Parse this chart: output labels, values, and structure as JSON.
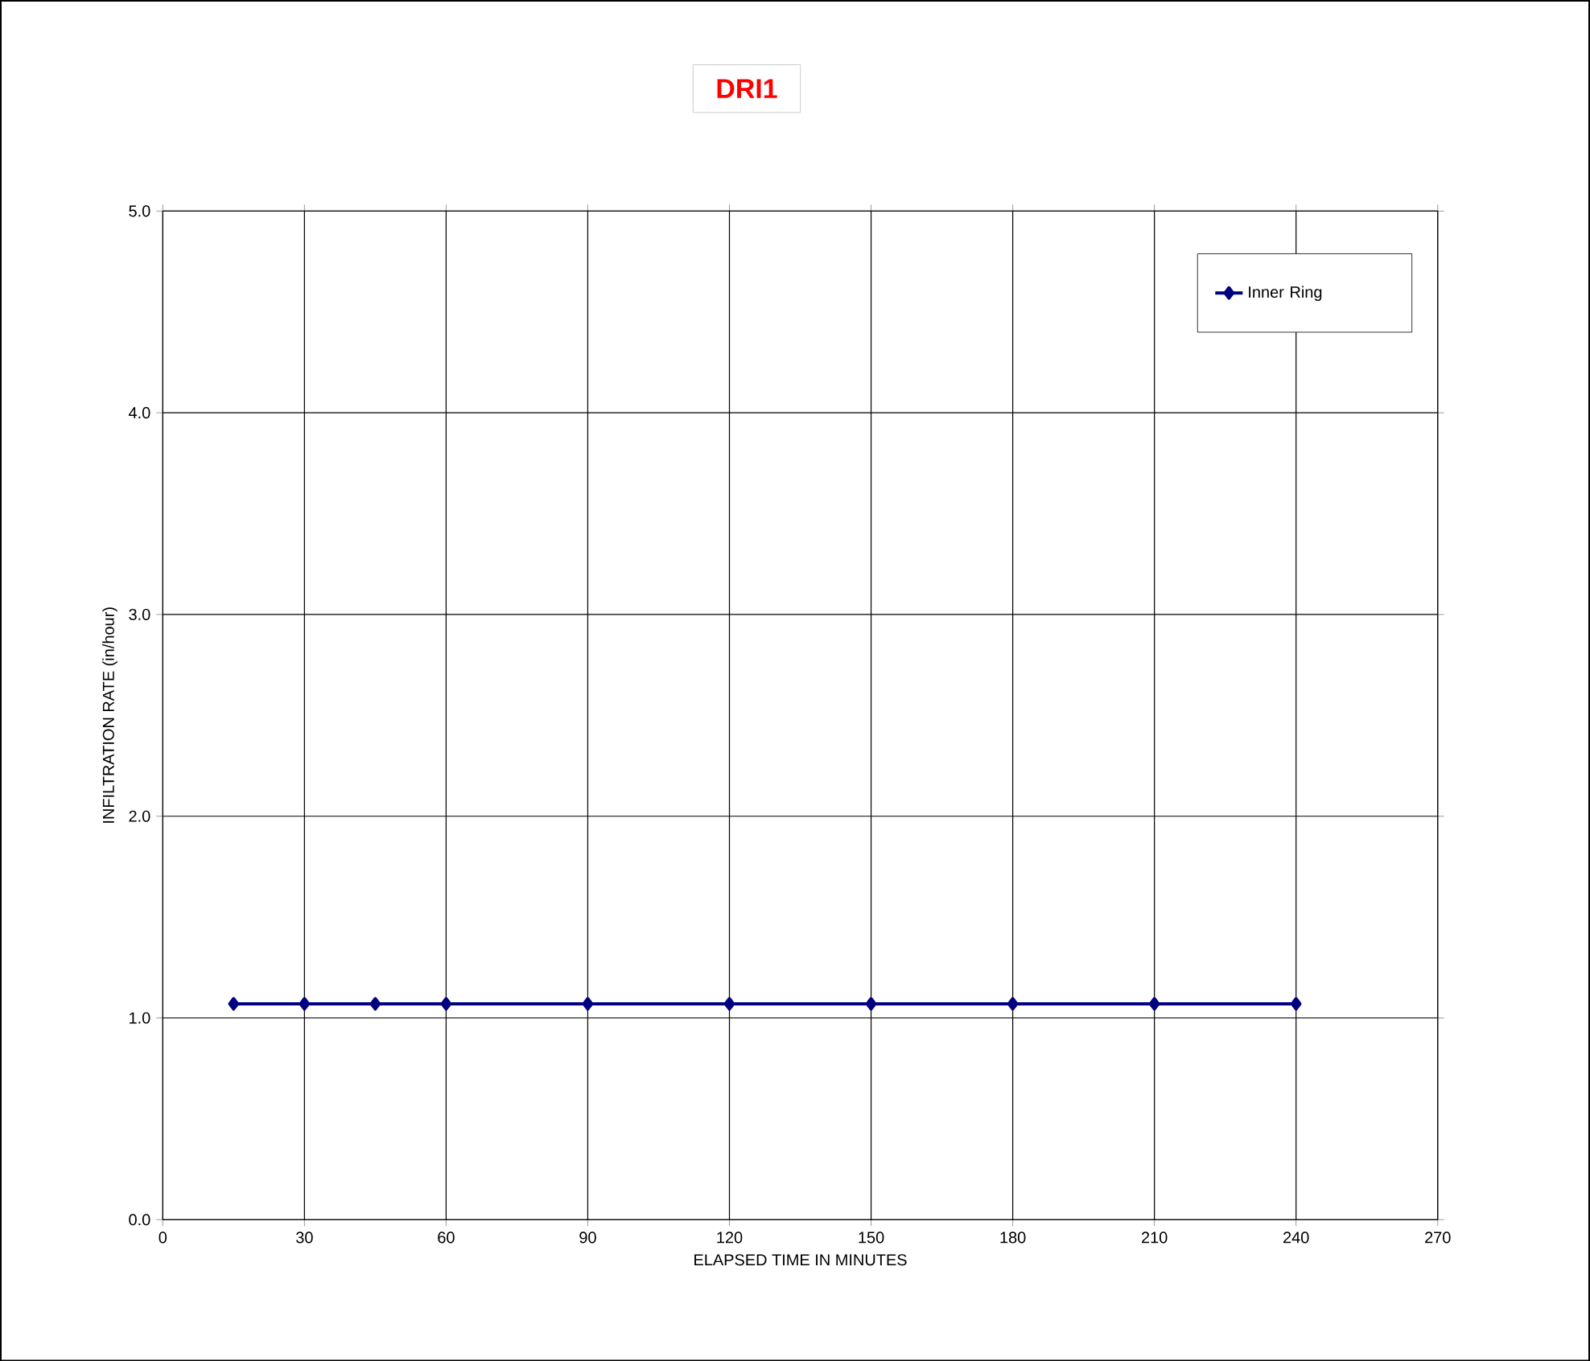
{
  "chart_data": {
    "type": "line",
    "title": "DRI1",
    "xlabel": "ELAPSED TIME IN MINUTES",
    "ylabel": "INFILTRATION RATE  (in/hour)",
    "x": [
      15,
      30,
      45,
      60,
      90,
      120,
      150,
      180,
      210,
      240
    ],
    "series": [
      {
        "name": "Inner Ring",
        "color": "#000080",
        "values": [
          1.07,
          1.07,
          1.07,
          1.07,
          1.07,
          1.07,
          1.07,
          1.07,
          1.07,
          1.07
        ]
      }
    ],
    "xlim": [
      0,
      270
    ],
    "xticks": [
      0,
      30,
      60,
      90,
      120,
      150,
      180,
      210,
      240,
      270
    ],
    "ylim": [
      0,
      5
    ],
    "yticks": [
      {
        "value": 0,
        "label": "0.0"
      },
      {
        "value": 1,
        "label": "1.0"
      },
      {
        "value": 2,
        "label": "2.0"
      },
      {
        "value": 3,
        "label": "3.0"
      },
      {
        "value": 4,
        "label": "4.0"
      },
      {
        "value": 5,
        "label": "5.0"
      }
    ],
    "grid": true,
    "legend": "top right",
    "marker": "diamond",
    "line_style": "solid"
  }
}
